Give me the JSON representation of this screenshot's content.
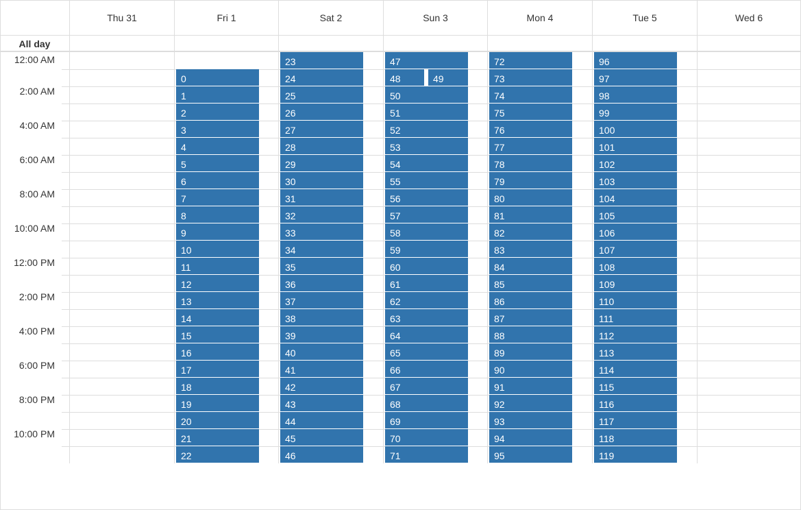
{
  "calendar": {
    "allday_label": "All day",
    "days": [
      "Thu 31",
      "Fri 1",
      "Sat 2",
      "Sun 3",
      "Mon 4",
      "Tue 5",
      "Wed 6"
    ],
    "time_labels": [
      "12:00 AM",
      "2:00 AM",
      "4:00 AM",
      "6:00 AM",
      "8:00 AM",
      "10:00 AM",
      "12:00 PM",
      "2:00 PM",
      "4:00 PM",
      "6:00 PM",
      "8:00 PM",
      "10:00 PM"
    ],
    "event_color": "#3174ad",
    "events": [
      {
        "day": 1,
        "start_hour": 1,
        "end_hour": 2,
        "label": "0"
      },
      {
        "day": 1,
        "start_hour": 2,
        "end_hour": 3,
        "label": "1"
      },
      {
        "day": 1,
        "start_hour": 3,
        "end_hour": 4,
        "label": "2"
      },
      {
        "day": 1,
        "start_hour": 4,
        "end_hour": 5,
        "label": "3"
      },
      {
        "day": 1,
        "start_hour": 5,
        "end_hour": 6,
        "label": "4"
      },
      {
        "day": 1,
        "start_hour": 6,
        "end_hour": 7,
        "label": "5"
      },
      {
        "day": 1,
        "start_hour": 7,
        "end_hour": 8,
        "label": "6"
      },
      {
        "day": 1,
        "start_hour": 8,
        "end_hour": 9,
        "label": "7"
      },
      {
        "day": 1,
        "start_hour": 9,
        "end_hour": 10,
        "label": "8"
      },
      {
        "day": 1,
        "start_hour": 10,
        "end_hour": 11,
        "label": "9"
      },
      {
        "day": 1,
        "start_hour": 11,
        "end_hour": 12,
        "label": "10"
      },
      {
        "day": 1,
        "start_hour": 12,
        "end_hour": 13,
        "label": "11"
      },
      {
        "day": 1,
        "start_hour": 13,
        "end_hour": 14,
        "label": "12"
      },
      {
        "day": 1,
        "start_hour": 14,
        "end_hour": 15,
        "label": "13"
      },
      {
        "day": 1,
        "start_hour": 15,
        "end_hour": 16,
        "label": "14"
      },
      {
        "day": 1,
        "start_hour": 16,
        "end_hour": 17,
        "label": "15"
      },
      {
        "day": 1,
        "start_hour": 17,
        "end_hour": 18,
        "label": "16"
      },
      {
        "day": 1,
        "start_hour": 18,
        "end_hour": 19,
        "label": "17"
      },
      {
        "day": 1,
        "start_hour": 19,
        "end_hour": 20,
        "label": "18"
      },
      {
        "day": 1,
        "start_hour": 20,
        "end_hour": 21,
        "label": "19"
      },
      {
        "day": 1,
        "start_hour": 21,
        "end_hour": 22,
        "label": "20"
      },
      {
        "day": 1,
        "start_hour": 22,
        "end_hour": 23,
        "label": "21"
      },
      {
        "day": 1,
        "start_hour": 23,
        "end_hour": 24,
        "label": "22"
      },
      {
        "day": 2,
        "start_hour": 0,
        "end_hour": 1,
        "label": "23"
      },
      {
        "day": 2,
        "start_hour": 1,
        "end_hour": 2,
        "label": "24"
      },
      {
        "day": 2,
        "start_hour": 2,
        "end_hour": 3,
        "label": "25"
      },
      {
        "day": 2,
        "start_hour": 3,
        "end_hour": 4,
        "label": "26"
      },
      {
        "day": 2,
        "start_hour": 4,
        "end_hour": 5,
        "label": "27"
      },
      {
        "day": 2,
        "start_hour": 5,
        "end_hour": 6,
        "label": "28"
      },
      {
        "day": 2,
        "start_hour": 6,
        "end_hour": 7,
        "label": "29"
      },
      {
        "day": 2,
        "start_hour": 7,
        "end_hour": 8,
        "label": "30"
      },
      {
        "day": 2,
        "start_hour": 8,
        "end_hour": 9,
        "label": "31"
      },
      {
        "day": 2,
        "start_hour": 9,
        "end_hour": 10,
        "label": "32"
      },
      {
        "day": 2,
        "start_hour": 10,
        "end_hour": 11,
        "label": "33"
      },
      {
        "day": 2,
        "start_hour": 11,
        "end_hour": 12,
        "label": "34"
      },
      {
        "day": 2,
        "start_hour": 12,
        "end_hour": 13,
        "label": "35"
      },
      {
        "day": 2,
        "start_hour": 13,
        "end_hour": 14,
        "label": "36"
      },
      {
        "day": 2,
        "start_hour": 14,
        "end_hour": 15,
        "label": "37"
      },
      {
        "day": 2,
        "start_hour": 15,
        "end_hour": 16,
        "label": "38"
      },
      {
        "day": 2,
        "start_hour": 16,
        "end_hour": 17,
        "label": "39"
      },
      {
        "day": 2,
        "start_hour": 17,
        "end_hour": 18,
        "label": "40"
      },
      {
        "day": 2,
        "start_hour": 18,
        "end_hour": 19,
        "label": "41"
      },
      {
        "day": 2,
        "start_hour": 19,
        "end_hour": 20,
        "label": "42"
      },
      {
        "day": 2,
        "start_hour": 20,
        "end_hour": 21,
        "label": "43"
      },
      {
        "day": 2,
        "start_hour": 21,
        "end_hour": 22,
        "label": "44"
      },
      {
        "day": 2,
        "start_hour": 22,
        "end_hour": 23,
        "label": "45"
      },
      {
        "day": 2,
        "start_hour": 23,
        "end_hour": 24,
        "label": "46"
      },
      {
        "day": 3,
        "start_hour": 0,
        "end_hour": 1,
        "label": "47"
      },
      {
        "day": 3,
        "start_hour": 1,
        "end_hour": 2,
        "label": "48",
        "slot": 0,
        "slots": 2
      },
      {
        "day": 3,
        "start_hour": 1,
        "end_hour": 2,
        "label": "49",
        "slot": 1,
        "slots": 2
      },
      {
        "day": 3,
        "start_hour": 2,
        "end_hour": 3,
        "label": "50"
      },
      {
        "day": 3,
        "start_hour": 3,
        "end_hour": 4,
        "label": "51"
      },
      {
        "day": 3,
        "start_hour": 4,
        "end_hour": 5,
        "label": "52"
      },
      {
        "day": 3,
        "start_hour": 5,
        "end_hour": 6,
        "label": "53"
      },
      {
        "day": 3,
        "start_hour": 6,
        "end_hour": 7,
        "label": "54"
      },
      {
        "day": 3,
        "start_hour": 7,
        "end_hour": 8,
        "label": "55"
      },
      {
        "day": 3,
        "start_hour": 8,
        "end_hour": 9,
        "label": "56"
      },
      {
        "day": 3,
        "start_hour": 9,
        "end_hour": 10,
        "label": "57"
      },
      {
        "day": 3,
        "start_hour": 10,
        "end_hour": 11,
        "label": "58"
      },
      {
        "day": 3,
        "start_hour": 11,
        "end_hour": 12,
        "label": "59"
      },
      {
        "day": 3,
        "start_hour": 12,
        "end_hour": 13,
        "label": "60"
      },
      {
        "day": 3,
        "start_hour": 13,
        "end_hour": 14,
        "label": "61"
      },
      {
        "day": 3,
        "start_hour": 14,
        "end_hour": 15,
        "label": "62"
      },
      {
        "day": 3,
        "start_hour": 15,
        "end_hour": 16,
        "label": "63"
      },
      {
        "day": 3,
        "start_hour": 16,
        "end_hour": 17,
        "label": "64"
      },
      {
        "day": 3,
        "start_hour": 17,
        "end_hour": 18,
        "label": "65"
      },
      {
        "day": 3,
        "start_hour": 18,
        "end_hour": 19,
        "label": "66"
      },
      {
        "day": 3,
        "start_hour": 19,
        "end_hour": 20,
        "label": "67"
      },
      {
        "day": 3,
        "start_hour": 20,
        "end_hour": 21,
        "label": "68"
      },
      {
        "day": 3,
        "start_hour": 21,
        "end_hour": 22,
        "label": "69"
      },
      {
        "day": 3,
        "start_hour": 22,
        "end_hour": 23,
        "label": "70"
      },
      {
        "day": 3,
        "start_hour": 23,
        "end_hour": 24,
        "label": "71"
      },
      {
        "day": 4,
        "start_hour": 0,
        "end_hour": 1,
        "label": "72"
      },
      {
        "day": 4,
        "start_hour": 1,
        "end_hour": 2,
        "label": "73"
      },
      {
        "day": 4,
        "start_hour": 2,
        "end_hour": 3,
        "label": "74"
      },
      {
        "day": 4,
        "start_hour": 3,
        "end_hour": 4,
        "label": "75"
      },
      {
        "day": 4,
        "start_hour": 4,
        "end_hour": 5,
        "label": "76"
      },
      {
        "day": 4,
        "start_hour": 5,
        "end_hour": 6,
        "label": "77"
      },
      {
        "day": 4,
        "start_hour": 6,
        "end_hour": 7,
        "label": "78"
      },
      {
        "day": 4,
        "start_hour": 7,
        "end_hour": 8,
        "label": "79"
      },
      {
        "day": 4,
        "start_hour": 8,
        "end_hour": 9,
        "label": "80"
      },
      {
        "day": 4,
        "start_hour": 9,
        "end_hour": 10,
        "label": "81"
      },
      {
        "day": 4,
        "start_hour": 10,
        "end_hour": 11,
        "label": "82"
      },
      {
        "day": 4,
        "start_hour": 11,
        "end_hour": 12,
        "label": "83"
      },
      {
        "day": 4,
        "start_hour": 12,
        "end_hour": 13,
        "label": "84"
      },
      {
        "day": 4,
        "start_hour": 13,
        "end_hour": 14,
        "label": "85"
      },
      {
        "day": 4,
        "start_hour": 14,
        "end_hour": 15,
        "label": "86"
      },
      {
        "day": 4,
        "start_hour": 15,
        "end_hour": 16,
        "label": "87"
      },
      {
        "day": 4,
        "start_hour": 16,
        "end_hour": 17,
        "label": "88"
      },
      {
        "day": 4,
        "start_hour": 17,
        "end_hour": 18,
        "label": "89"
      },
      {
        "day": 4,
        "start_hour": 18,
        "end_hour": 19,
        "label": "90"
      },
      {
        "day": 4,
        "start_hour": 19,
        "end_hour": 20,
        "label": "91"
      },
      {
        "day": 4,
        "start_hour": 20,
        "end_hour": 21,
        "label": "92"
      },
      {
        "day": 4,
        "start_hour": 21,
        "end_hour": 22,
        "label": "93"
      },
      {
        "day": 4,
        "start_hour": 22,
        "end_hour": 23,
        "label": "94"
      },
      {
        "day": 4,
        "start_hour": 23,
        "end_hour": 24,
        "label": "95"
      },
      {
        "day": 5,
        "start_hour": 0,
        "end_hour": 1,
        "label": "96"
      },
      {
        "day": 5,
        "start_hour": 1,
        "end_hour": 2,
        "label": "97"
      },
      {
        "day": 5,
        "start_hour": 2,
        "end_hour": 3,
        "label": "98"
      },
      {
        "day": 5,
        "start_hour": 3,
        "end_hour": 4,
        "label": "99"
      },
      {
        "day": 5,
        "start_hour": 4,
        "end_hour": 5,
        "label": "100"
      },
      {
        "day": 5,
        "start_hour": 5,
        "end_hour": 6,
        "label": "101"
      },
      {
        "day": 5,
        "start_hour": 6,
        "end_hour": 7,
        "label": "102"
      },
      {
        "day": 5,
        "start_hour": 7,
        "end_hour": 8,
        "label": "103"
      },
      {
        "day": 5,
        "start_hour": 8,
        "end_hour": 9,
        "label": "104"
      },
      {
        "day": 5,
        "start_hour": 9,
        "end_hour": 10,
        "label": "105"
      },
      {
        "day": 5,
        "start_hour": 10,
        "end_hour": 11,
        "label": "106"
      },
      {
        "day": 5,
        "start_hour": 11,
        "end_hour": 12,
        "label": "107"
      },
      {
        "day": 5,
        "start_hour": 12,
        "end_hour": 13,
        "label": "108"
      },
      {
        "day": 5,
        "start_hour": 13,
        "end_hour": 14,
        "label": "109"
      },
      {
        "day": 5,
        "start_hour": 14,
        "end_hour": 15,
        "label": "110"
      },
      {
        "day": 5,
        "start_hour": 15,
        "end_hour": 16,
        "label": "111"
      },
      {
        "day": 5,
        "start_hour": 16,
        "end_hour": 17,
        "label": "112"
      },
      {
        "day": 5,
        "start_hour": 17,
        "end_hour": 18,
        "label": "113"
      },
      {
        "day": 5,
        "start_hour": 18,
        "end_hour": 19,
        "label": "114"
      },
      {
        "day": 5,
        "start_hour": 19,
        "end_hour": 20,
        "label": "115"
      },
      {
        "day": 5,
        "start_hour": 20,
        "end_hour": 21,
        "label": "116"
      },
      {
        "day": 5,
        "start_hour": 21,
        "end_hour": 22,
        "label": "117"
      },
      {
        "day": 5,
        "start_hour": 22,
        "end_hour": 23,
        "label": "118"
      },
      {
        "day": 5,
        "start_hour": 23,
        "end_hour": 24,
        "label": "119"
      }
    ]
  }
}
